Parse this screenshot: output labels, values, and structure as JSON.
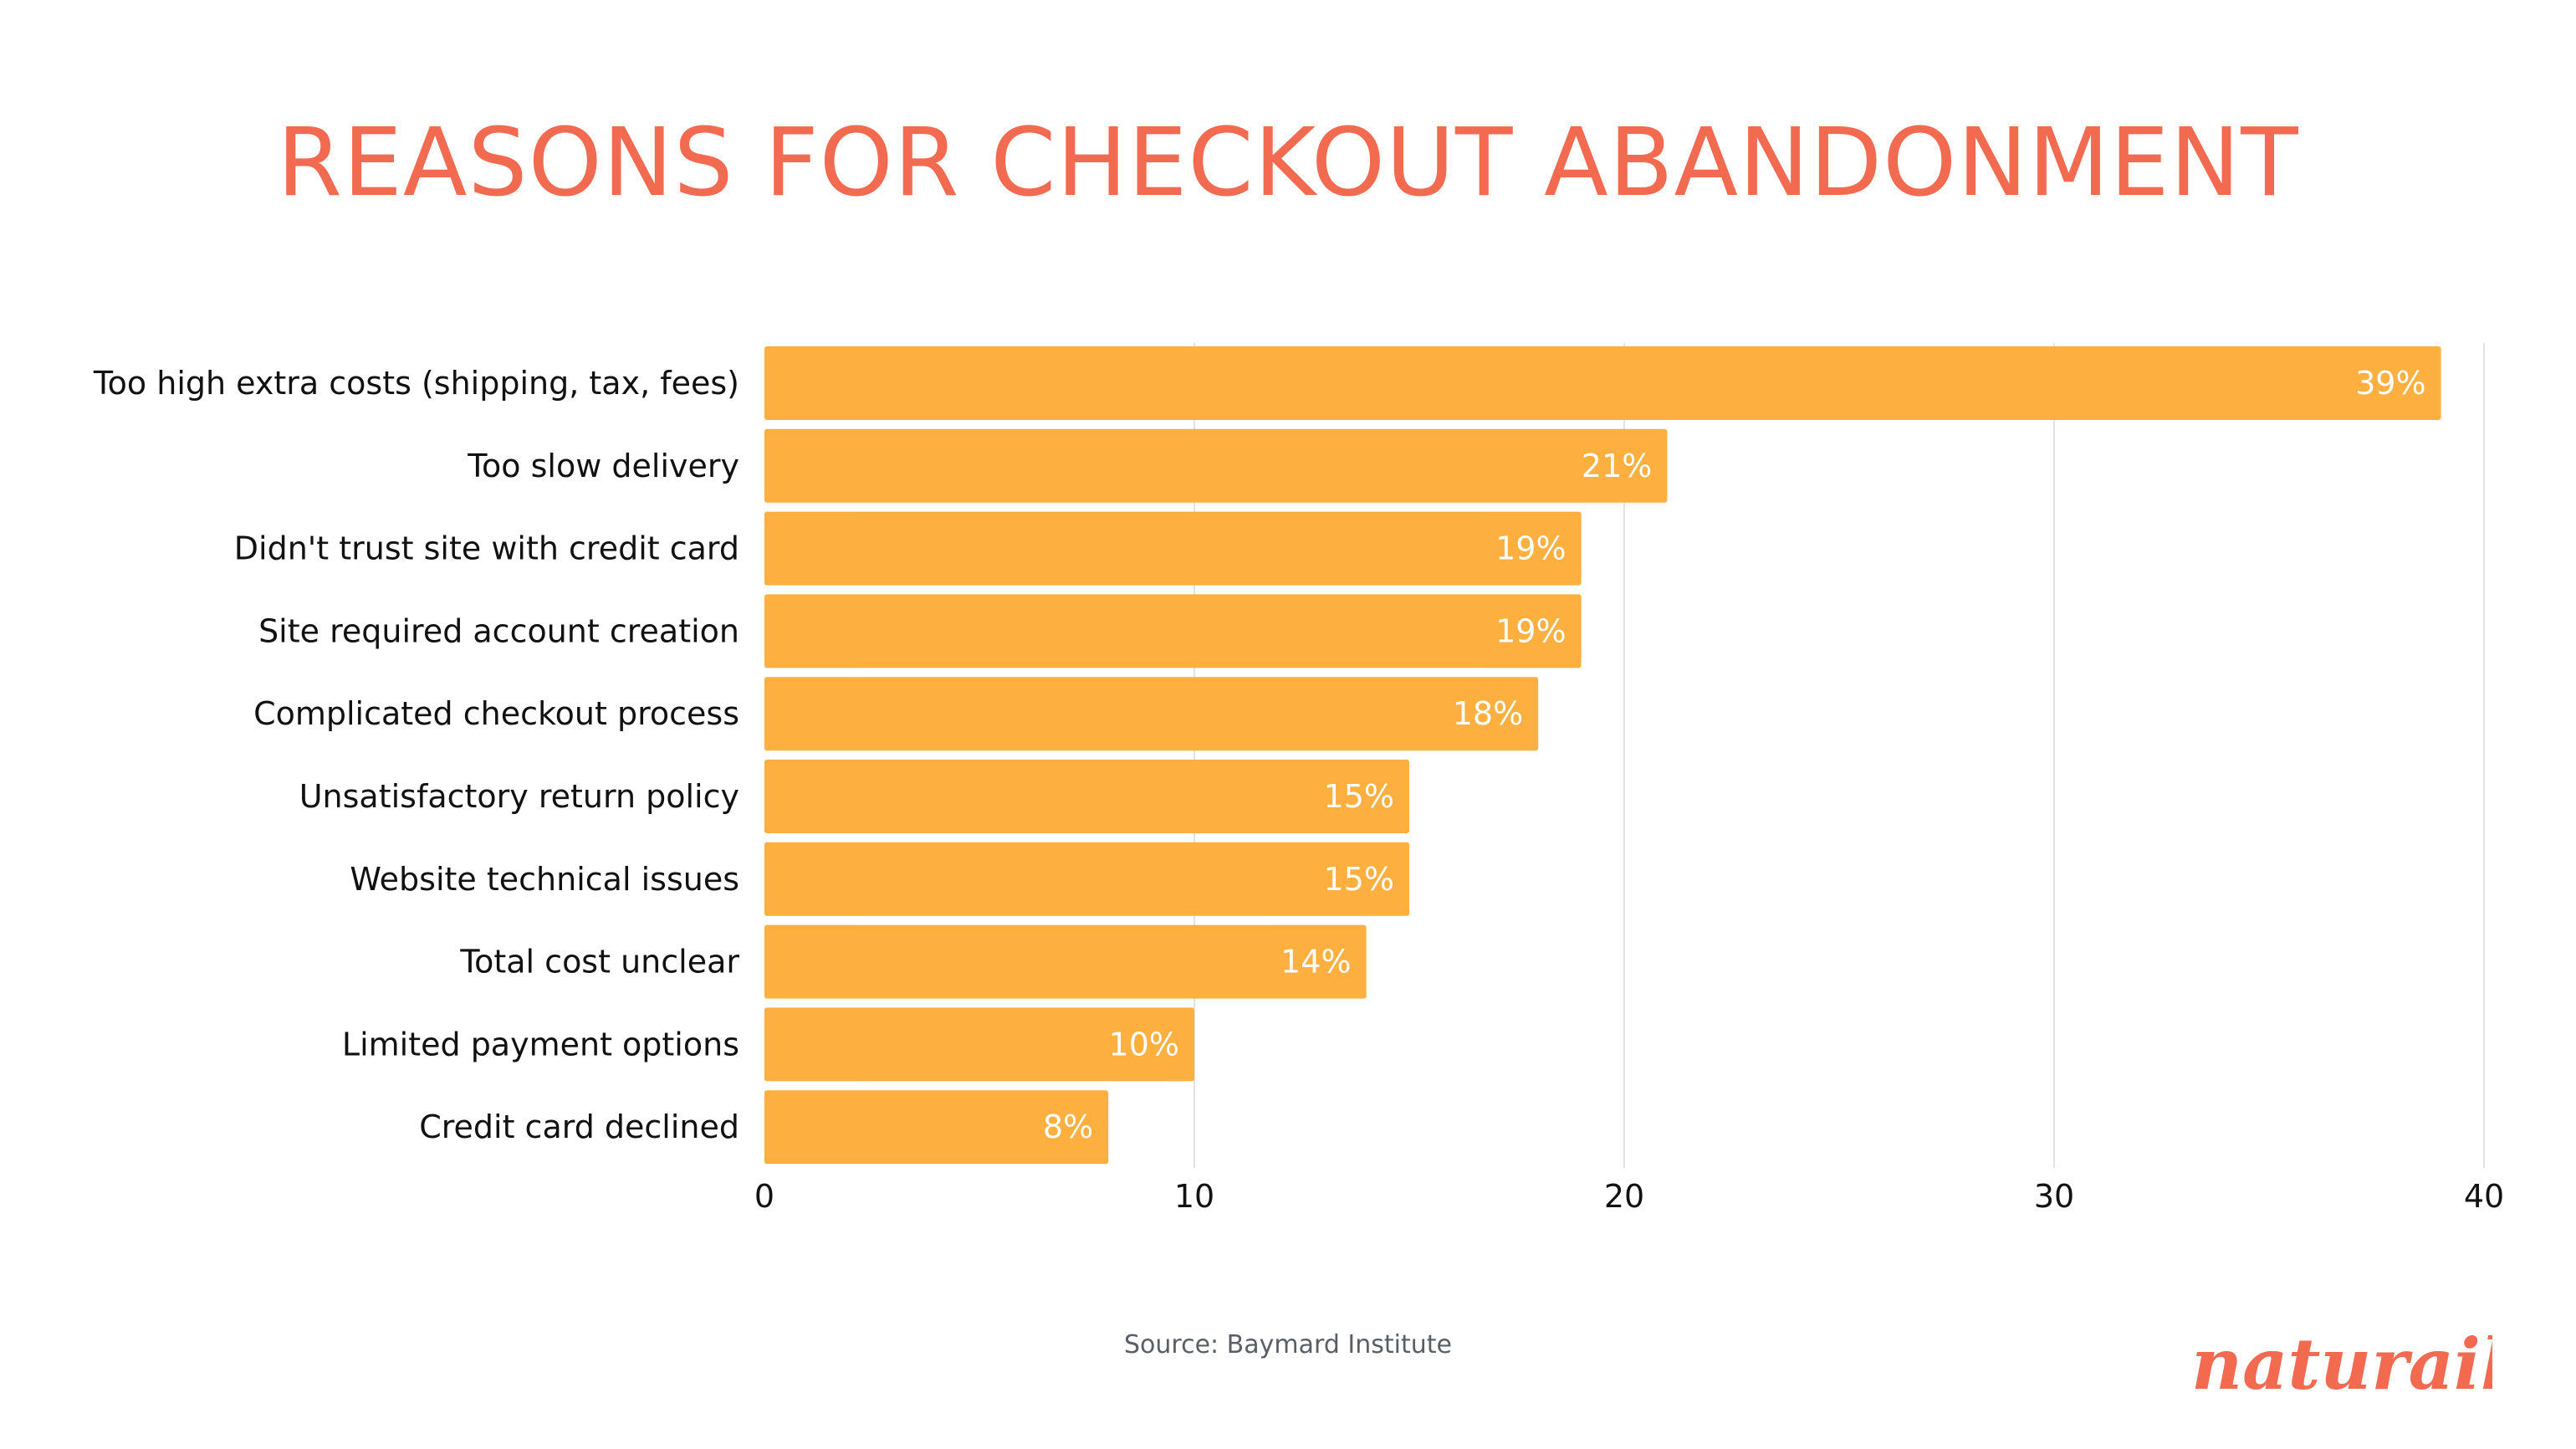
{
  "colors": {
    "title": "#F26A4F",
    "bar": "#FDB040",
    "grid": "#E3E3E3",
    "logo": "#F26A4F"
  },
  "source_text": "Source: Baymard Institute",
  "logo_text": "naturaily",
  "chart_data": {
    "type": "bar",
    "orientation": "horizontal",
    "title": "REASONS FOR CHECKOUT ABANDONMENT",
    "xlabel": "",
    "ylabel": "",
    "categories": [
      "Too high extra costs (shipping, tax, fees)",
      "Too slow delivery",
      "Didn't trust site with credit card",
      "Site required account creation",
      "Complicated checkout process",
      "Unsatisfactory return policy",
      "Website technical issues",
      "Total cost unclear",
      "Limited payment options",
      "Credit card declined"
    ],
    "values": [
      39,
      21,
      19,
      19,
      18,
      15,
      15,
      14,
      10,
      8
    ],
    "value_labels": [
      "39%",
      "21%",
      "19%",
      "19%",
      "18%",
      "15%",
      "15%",
      "14%",
      "10%",
      "8%"
    ],
    "xlim": [
      0,
      40
    ],
    "xticks": [
      0,
      10,
      20,
      30,
      40
    ],
    "xtick_labels": [
      "0",
      "10",
      "20",
      "30",
      "40"
    ],
    "grid": true,
    "legend": "none"
  }
}
